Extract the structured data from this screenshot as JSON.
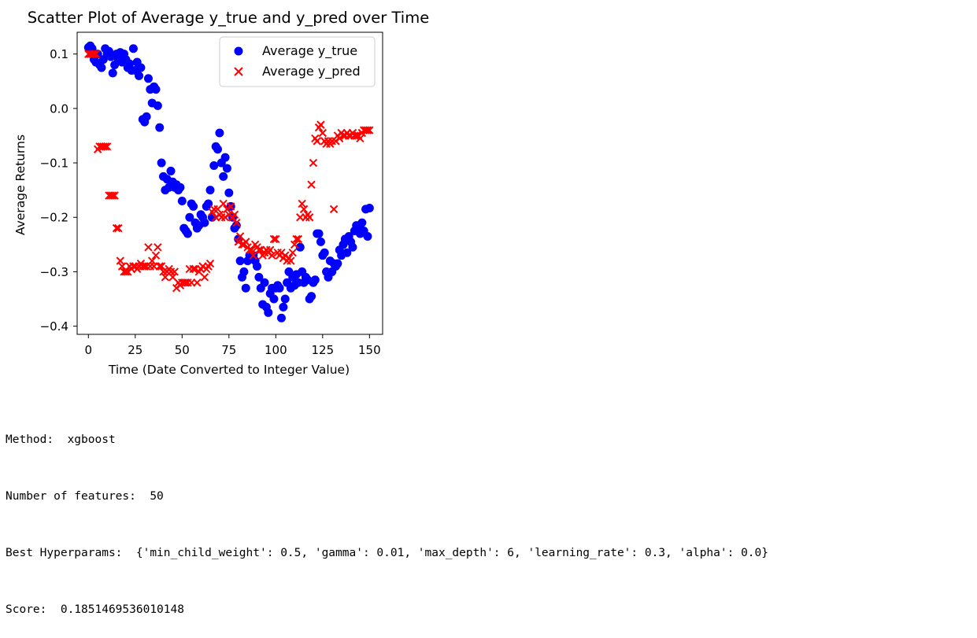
{
  "chart_data": {
    "type": "scatter",
    "title": "Scatter Plot of Average y_true and y_pred over Time",
    "xlabel": "Time (Date Converted to Integer Value)",
    "ylabel": "Average Returns",
    "xlim": [
      -6,
      157
    ],
    "ylim": [
      -0.415,
      0.14
    ],
    "xticks": [
      0,
      25,
      50,
      75,
      100,
      125,
      150
    ],
    "xtick_labels": [
      "0",
      "25",
      "50",
      "75",
      "100",
      "125",
      "150"
    ],
    "yticks": [
      0.1,
      0.0,
      -0.1,
      -0.2,
      -0.3,
      -0.4
    ],
    "ytick_labels": [
      "0.1",
      "0.0",
      "−0.1",
      "−0.2",
      "−0.3",
      "−0.4"
    ],
    "grid": false,
    "legend_position": "upper right",
    "series": [
      {
        "name": "Average y_true",
        "marker": "circle",
        "color": "#0000ff",
        "x": [
          0,
          1,
          2,
          3,
          4,
          5,
          6,
          7,
          8,
          9,
          10,
          11,
          12,
          13,
          14,
          15,
          16,
          17,
          18,
          19,
          20,
          21,
          22,
          23,
          24,
          25,
          26,
          27,
          28,
          29,
          30,
          31,
          32,
          33,
          34,
          35,
          36,
          37,
          38,
          39,
          40,
          41,
          42,
          43,
          44,
          45,
          46,
          47,
          48,
          49,
          50,
          51,
          52,
          53,
          54,
          55,
          56,
          57,
          58,
          59,
          60,
          61,
          62,
          63,
          64,
          65,
          66,
          67,
          68,
          69,
          70,
          71,
          72,
          73,
          74,
          75,
          76,
          77,
          78,
          79,
          80,
          81,
          82,
          83,
          84,
          85,
          86,
          87,
          88,
          89,
          90,
          91,
          92,
          93,
          94,
          95,
          96,
          97,
          98,
          99,
          100,
          101,
          102,
          103,
          104,
          105,
          106,
          107,
          108,
          109,
          110,
          111,
          112,
          113,
          114,
          115,
          116,
          117,
          118,
          119,
          120,
          121,
          122,
          123,
          124,
          125,
          126,
          127,
          128,
          129,
          130,
          131,
          132,
          133,
          134,
          135,
          136,
          137,
          138,
          139,
          140,
          141,
          142,
          143,
          144,
          145,
          146,
          147,
          148,
          149,
          150
        ],
        "y": [
          0.112,
          0.115,
          0.11,
          0.09,
          0.085,
          0.1,
          0.08,
          0.075,
          0.09,
          0.11,
          0.1,
          0.105,
          0.095,
          0.065,
          0.08,
          0.1,
          0.09,
          0.103,
          0.085,
          0.1,
          0.09,
          0.075,
          0.082,
          0.07,
          0.11,
          0.07,
          0.085,
          0.06,
          0.075,
          -0.02,
          -0.025,
          -0.015,
          0.055,
          0.035,
          0.01,
          0.04,
          0.035,
          0.005,
          -0.035,
          -0.1,
          -0.125,
          -0.15,
          -0.13,
          -0.145,
          -0.115,
          -0.135,
          -0.145,
          -0.14,
          -0.15,
          -0.145,
          -0.17,
          -0.22,
          -0.225,
          -0.23,
          -0.2,
          -0.175,
          -0.18,
          -0.21,
          -0.22,
          -0.215,
          -0.195,
          -0.2,
          -0.21,
          -0.18,
          -0.175,
          -0.15,
          -0.2,
          -0.105,
          -0.07,
          -0.075,
          -0.045,
          -0.1,
          -0.125,
          -0.09,
          -0.11,
          -0.155,
          -0.18,
          -0.2,
          -0.22,
          -0.215,
          -0.24,
          -0.28,
          -0.31,
          -0.3,
          -0.33,
          -0.28,
          -0.27,
          -0.275,
          -0.27,
          -0.28,
          -0.29,
          -0.31,
          -0.33,
          -0.36,
          -0.32,
          -0.365,
          -0.375,
          -0.34,
          -0.33,
          -0.35,
          -0.33,
          -0.325,
          -0.33,
          -0.385,
          -0.365,
          -0.35,
          -0.32,
          -0.3,
          -0.33,
          -0.31,
          -0.325,
          -0.305,
          -0.32,
          -0.255,
          -0.3,
          -0.32,
          -0.31,
          -0.315,
          -0.35,
          -0.345,
          -0.32,
          -0.315,
          -0.23,
          -0.23,
          -0.245,
          -0.27,
          -0.265,
          -0.3,
          -0.31,
          -0.28,
          -0.3,
          -0.285,
          -0.29,
          -0.285,
          -0.26,
          -0.27,
          -0.25,
          -0.24,
          -0.265,
          -0.235,
          -0.245,
          -0.255,
          -0.225,
          -0.215,
          -0.22,
          -0.23,
          -0.21,
          -0.225,
          -0.185,
          -0.235,
          -0.183
        ]
      },
      {
        "name": "Average y_pred",
        "marker": "x",
        "color": "#ff0000",
        "x": [
          0,
          1,
          2,
          3,
          4,
          5,
          6,
          7,
          8,
          9,
          10,
          11,
          12,
          13,
          14,
          15,
          16,
          17,
          18,
          19,
          20,
          21,
          22,
          23,
          24,
          25,
          26,
          27,
          28,
          29,
          30,
          31,
          32,
          33,
          34,
          35,
          36,
          37,
          38,
          39,
          40,
          41,
          42,
          43,
          44,
          45,
          46,
          47,
          48,
          49,
          50,
          51,
          52,
          53,
          54,
          55,
          56,
          57,
          58,
          59,
          60,
          61,
          62,
          63,
          64,
          65,
          66,
          67,
          68,
          69,
          70,
          71,
          72,
          73,
          74,
          75,
          76,
          77,
          78,
          79,
          80,
          81,
          82,
          83,
          84,
          85,
          86,
          87,
          88,
          89,
          90,
          91,
          92,
          93,
          94,
          95,
          96,
          97,
          98,
          99,
          100,
          101,
          102,
          103,
          104,
          105,
          106,
          107,
          108,
          109,
          110,
          111,
          112,
          113,
          114,
          115,
          116,
          117,
          118,
          119,
          120,
          121,
          122,
          123,
          124,
          125,
          126,
          127,
          128,
          129,
          130,
          131,
          132,
          133,
          134,
          135,
          136,
          137,
          138,
          139,
          140,
          141,
          142,
          143,
          144,
          145,
          146,
          147,
          148,
          149,
          150
        ],
        "y": [
          0.1,
          0.1,
          0.1,
          0.1,
          0.1,
          -0.075,
          -0.07,
          -0.07,
          -0.07,
          -0.07,
          -0.07,
          -0.16,
          -0.16,
          -0.16,
          -0.16,
          -0.22,
          -0.22,
          -0.28,
          -0.29,
          -0.3,
          -0.3,
          -0.3,
          -0.29,
          -0.295,
          -0.29,
          -0.29,
          -0.295,
          -0.29,
          -0.285,
          -0.29,
          -0.29,
          -0.29,
          -0.255,
          -0.29,
          -0.28,
          -0.29,
          -0.27,
          -0.255,
          -0.29,
          -0.29,
          -0.3,
          -0.31,
          -0.3,
          -0.295,
          -0.3,
          -0.31,
          -0.3,
          -0.33,
          -0.32,
          -0.325,
          -0.32,
          -0.32,
          -0.32,
          -0.32,
          -0.295,
          -0.32,
          -0.295,
          -0.295,
          -0.32,
          -0.3,
          -0.295,
          -0.29,
          -0.31,
          -0.295,
          -0.29,
          -0.285,
          -0.19,
          -0.185,
          -0.2,
          -0.185,
          -0.195,
          -0.2,
          -0.175,
          -0.2,
          -0.185,
          -0.195,
          -0.18,
          -0.2,
          -0.195,
          -0.21,
          -0.245,
          -0.235,
          -0.25,
          -0.25,
          -0.245,
          -0.255,
          -0.26,
          -0.26,
          -0.27,
          -0.25,
          -0.255,
          -0.26,
          -0.26,
          -0.27,
          -0.265,
          -0.26,
          -0.265,
          -0.26,
          -0.27,
          -0.24,
          -0.24,
          -0.265,
          -0.27,
          -0.265,
          -0.275,
          -0.27,
          -0.28,
          -0.275,
          -0.28,
          -0.265,
          -0.25,
          -0.24,
          -0.24,
          -0.2,
          -0.175,
          -0.185,
          -0.2,
          -0.195,
          -0.2,
          -0.14,
          -0.1,
          -0.055,
          -0.06,
          -0.035,
          -0.03,
          -0.045,
          -0.06,
          -0.065,
          -0.06,
          -0.065,
          -0.06,
          -0.185,
          -0.06,
          -0.05,
          -0.055,
          -0.045,
          -0.05,
          -0.05,
          -0.045,
          -0.05,
          -0.05,
          -0.045,
          -0.05,
          -0.05,
          -0.05,
          -0.055,
          -0.045,
          -0.04,
          -0.04,
          -0.04,
          -0.04
        ]
      }
    ]
  },
  "output": {
    "method_line": "Method:  xgboost",
    "features_line": "Number of features:  50",
    "hyperparams_line": "Best Hyperparams:  {'min_child_weight': 0.5, 'gamma': 0.01, 'max_depth': 6, 'learning_rate': 0.3, 'alpha': 0.0}",
    "score_line": "Score:  0.1851469536010148"
  }
}
